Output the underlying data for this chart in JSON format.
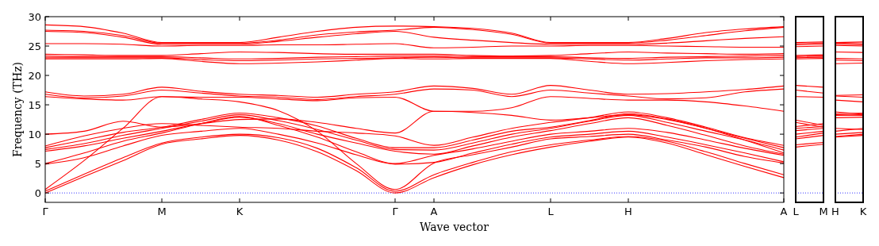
{
  "chart_data": [
    {
      "type": "line",
      "xlabel": "Wave vector",
      "ylabel": "Frequency (THz)",
      "ylim": [
        -1.6,
        30
      ],
      "yticks": [
        0,
        5,
        10,
        15,
        20,
        25,
        30
      ],
      "categories": [
        "Γ",
        null,
        null,
        "M",
        null,
        "K",
        null,
        null,
        null,
        "Γ",
        "A",
        null,
        null,
        "L",
        null,
        "H",
        null,
        null,
        null,
        "A"
      ],
      "grid": false,
      "line_style": "solid",
      "marker": "none",
      "ref_lines": [
        {
          "axis": "y",
          "value": 0,
          "color": "#0000ff",
          "line_style": "dotted"
        }
      ],
      "series": [
        {
          "color": "#ff0000",
          "values": [
            0,
            2.8,
            5.5,
            8.3,
            9.2,
            9.8,
            9,
            7,
            3.8,
            0,
            2.6,
            4.8,
            6.5,
            7.8,
            8.8,
            9.5,
            8.5,
            6.5,
            4.5,
            2.6
          ]
        },
        {
          "color": "#ff0000",
          "values": [
            0.3,
            3.2,
            6,
            8.5,
            9.5,
            10,
            9.4,
            7.6,
            4.3,
            0.3,
            3.1,
            5.2,
            7,
            8.2,
            9,
            9.6,
            8.8,
            7,
            5,
            3.1
          ]
        },
        {
          "color": "#ff0000",
          "values": [
            0.6,
            5.5,
            11,
            16.4,
            16,
            15.5,
            14,
            10.5,
            5,
            0.6,
            5.1,
            6.5,
            7.8,
            9.2,
            9.6,
            10,
            9,
            7.8,
            6.2,
            5.1
          ]
        },
        {
          "color": "#ff0000",
          "values": [
            4.9,
            6,
            8,
            9.8,
            10.5,
            11,
            10,
            8.5,
            6.5,
            4.9,
            5.2,
            6.8,
            8.3,
            9.5,
            10,
            10.5,
            9.5,
            8.2,
            6.8,
            5.3
          ]
        },
        {
          "color": "#ff0000",
          "values": [
            5,
            6.8,
            8.8,
            10.2,
            11.8,
            13,
            11.5,
            9.5,
            7,
            5,
            6.4,
            7.5,
            8.8,
            10,
            10.5,
            11,
            10.3,
            9,
            7.6,
            6.4
          ]
        },
        {
          "color": "#ff0000",
          "values": [
            7.1,
            8,
            9.3,
            10.5,
            11.8,
            12.9,
            11.8,
            10,
            8.5,
            7.1,
            6.6,
            8,
            9.5,
            10.6,
            11.8,
            12.8,
            11.5,
            9.8,
            8,
            6.6
          ]
        },
        {
          "color": "#ff0000",
          "values": [
            7.4,
            8.4,
            9.8,
            11,
            12.2,
            13.3,
            12.3,
            10.8,
            9,
            7.4,
            7.3,
            8.5,
            10,
            11,
            12.2,
            13.2,
            12,
            10.5,
            9,
            7.3
          ]
        },
        {
          "color": "#ff0000",
          "values": [
            7.7,
            9,
            10.3,
            11.2,
            12.5,
            13.6,
            12.8,
            11.4,
            9.3,
            7.7,
            7.7,
            9,
            10.5,
            11.2,
            12.3,
            13.5,
            12.6,
            11,
            9.3,
            7.7
          ]
        },
        {
          "color": "#ff0000",
          "values": [
            8,
            9.7,
            11,
            11.8,
            11.5,
            11.2,
            11,
            10.5,
            10.2,
            9.7,
            8.1,
            9.5,
            11,
            12,
            12.8,
            13.8,
            12.8,
            11.2,
            9.4,
            8.1
          ]
        },
        {
          "color": "#ff0000",
          "values": [
            10,
            10.5,
            12.2,
            11.2,
            11.8,
            12.5,
            12.6,
            12,
            11,
            10.2,
            13.9,
            13.7,
            13.2,
            12.4,
            12.8,
            13.3,
            12.5,
            11,
            9,
            6.8
          ]
        },
        {
          "color": "#ff0000",
          "values": [
            16.4,
            16,
            15.8,
            16.4,
            16.3,
            16.3,
            16,
            15.7,
            16.2,
            16.3,
            13.9,
            13.9,
            14.5,
            16.4,
            16.1,
            15.8,
            15.8,
            15.5,
            14.8,
            13.9
          ]
        },
        {
          "color": "#ff0000",
          "values": [
            16.8,
            16.2,
            16.5,
            17.5,
            17,
            16.5,
            16.3,
            15.9,
            16.4,
            16.8,
            17.7,
            17.5,
            16.4,
            17.5,
            17,
            16.5,
            16,
            16.2,
            17.2,
            17.7
          ]
        },
        {
          "color": "#ff0000",
          "values": [
            17.2,
            16.5,
            16.8,
            18,
            17.3,
            16.8,
            16.6,
            16.3,
            16.8,
            17.2,
            18.2,
            17.8,
            16.8,
            18.3,
            17.5,
            16.8,
            16.9,
            17.2,
            17.6,
            18.2
          ]
        },
        {
          "color": "#ff0000",
          "values": [
            22.8,
            22.8,
            22.8,
            22.9,
            22.4,
            22,
            22.1,
            22.3,
            22.6,
            22.9,
            22.8,
            22.9,
            22.9,
            22.9,
            22.4,
            22,
            22.2,
            22.5,
            22.7,
            22.8
          ]
        },
        {
          "color": "#ff0000",
          "values": [
            23,
            23,
            23,
            23,
            22.7,
            22.5,
            22.6,
            22.8,
            22.9,
            23,
            23.1,
            23,
            23,
            23,
            22.8,
            22.6,
            22.8,
            23,
            23,
            23.1
          ]
        },
        {
          "color": "#ff0000",
          "values": [
            23.3,
            23.2,
            23.2,
            23.2,
            23,
            22.8,
            22.9,
            23.1,
            23.2,
            23.3,
            23.3,
            23.2,
            23.2,
            23.2,
            23,
            22.9,
            23.1,
            23.2,
            23.3,
            23.4
          ]
        },
        {
          "color": "#ff0000",
          "values": [
            23.6,
            23.5,
            23.4,
            23.4,
            23.7,
            24,
            23.9,
            23.7,
            23.6,
            23.6,
            23.6,
            23.4,
            23.3,
            23.4,
            23.7,
            24,
            23.8,
            23.7,
            23.6,
            23.7
          ]
        },
        {
          "color": "#ff0000",
          "values": [
            25.4,
            25.4,
            25.3,
            25,
            25.1,
            25.1,
            25.2,
            25.2,
            25.3,
            25.4,
            24.7,
            24.8,
            25,
            25,
            25.1,
            25.1,
            25,
            24.9,
            24.8,
            24.8
          ]
        },
        {
          "color": "#ff0000",
          "values": [
            27.5,
            27.3,
            26.5,
            25.3,
            25.3,
            25.3,
            25.8,
            26.5,
            27.1,
            27.5,
            26.5,
            26,
            25.6,
            25.3,
            25.3,
            25.3,
            25.5,
            25.9,
            26.3,
            26.6
          ]
        },
        {
          "color": "#ff0000",
          "values": [
            27.7,
            27.5,
            26.8,
            25.5,
            25.5,
            25.5,
            26,
            26.9,
            27.4,
            27.7,
            28.2,
            27.8,
            27,
            25.5,
            25.5,
            25.5,
            26,
            26.8,
            27.6,
            28.2
          ]
        },
        {
          "color": "#ff0000",
          "values": [
            28.6,
            28.3,
            27.2,
            25.6,
            25.6,
            25.6,
            26.5,
            27.5,
            28.2,
            28.4,
            28.3,
            28,
            27.2,
            25.6,
            25.6,
            25.6,
            26.3,
            27.3,
            27.9,
            28.3
          ]
        }
      ]
    },
    {
      "type": "line",
      "ylim": [
        -1.6,
        30
      ],
      "yticks": [
        0,
        5,
        10,
        15,
        20,
        25,
        30
      ],
      "tick_labels": "x",
      "categories": [
        "L",
        "M"
      ],
      "grid": false,
      "line_style": "solid",
      "marker": "none",
      "ref_lines": [
        {
          "axis": "y",
          "value": 0,
          "color": "#0000ff",
          "line_style": "dotted"
        }
      ],
      "series": [
        {
          "color": "#ff0000",
          "values": [
            7.8,
            8.3
          ]
        },
        {
          "color": "#ff0000",
          "values": [
            8.2,
            8.6
          ]
        },
        {
          "color": "#ff0000",
          "values": [
            9.2,
            9.8
          ]
        },
        {
          "color": "#ff0000",
          "values": [
            9.5,
            10.2
          ]
        },
        {
          "color": "#ff0000",
          "values": [
            10,
            10.5
          ]
        },
        {
          "color": "#ff0000",
          "values": [
            10.6,
            11
          ]
        },
        {
          "color": "#ff0000",
          "values": [
            11,
            11.3
          ]
        },
        {
          "color": "#ff0000",
          "values": [
            11.3,
            11.8
          ]
        },
        {
          "color": "#ff0000",
          "values": [
            12,
            11.2
          ]
        },
        {
          "color": "#ff0000",
          "values": [
            12.4,
            11.5
          ]
        },
        {
          "color": "#ff0000",
          "values": [
            16.4,
            16.3
          ]
        },
        {
          "color": "#ff0000",
          "values": [
            17.5,
            17
          ]
        },
        {
          "color": "#ff0000",
          "values": [
            18.3,
            18
          ]
        },
        {
          "color": "#ff0000",
          "values": [
            22.8,
            22.9
          ]
        },
        {
          "color": "#ff0000",
          "values": [
            23,
            23.1
          ]
        },
        {
          "color": "#ff0000",
          "values": [
            23.2,
            23.3
          ]
        },
        {
          "color": "#ff0000",
          "values": [
            23.4,
            23.5
          ]
        },
        {
          "color": "#ff0000",
          "values": [
            24.9,
            25
          ]
        },
        {
          "color": "#ff0000",
          "values": [
            25.2,
            25.3
          ]
        },
        {
          "color": "#ff0000",
          "values": [
            25.4,
            25.5
          ]
        },
        {
          "color": "#ff0000",
          "values": [
            25.6,
            25.7
          ]
        }
      ]
    },
    {
      "type": "line",
      "ylim": [
        -1.6,
        30
      ],
      "yticks": [
        0,
        5,
        10,
        15,
        20,
        25,
        30
      ],
      "tick_labels": "x",
      "categories": [
        "H",
        "K"
      ],
      "grid": false,
      "line_style": "solid",
      "marker": "none",
      "ref_lines": [
        {
          "axis": "y",
          "value": 0,
          "color": "#0000ff",
          "line_style": "dotted"
        }
      ],
      "series": [
        {
          "color": "#ff0000",
          "values": [
            9.5,
            9.8
          ]
        },
        {
          "color": "#ff0000",
          "values": [
            9.6,
            10
          ]
        },
        {
          "color": "#ff0000",
          "values": [
            10,
            10.3
          ]
        },
        {
          "color": "#ff0000",
          "values": [
            10.5,
            11
          ]
        },
        {
          "color": "#ff0000",
          "values": [
            11,
            10.8
          ]
        },
        {
          "color": "#ff0000",
          "values": [
            12.8,
            12.9
          ]
        },
        {
          "color": "#ff0000",
          "values": [
            13.2,
            13.3
          ]
        },
        {
          "color": "#ff0000",
          "values": [
            13.5,
            13.6
          ]
        },
        {
          "color": "#ff0000",
          "values": [
            13.8,
            13.4
          ]
        },
        {
          "color": "#ff0000",
          "values": [
            13.3,
            13.2
          ]
        },
        {
          "color": "#ff0000",
          "values": [
            15.8,
            15.5
          ]
        },
        {
          "color": "#ff0000",
          "values": [
            16.5,
            16.3
          ]
        },
        {
          "color": "#ff0000",
          "values": [
            16.6,
            16.7
          ]
        },
        {
          "color": "#ff0000",
          "values": [
            22,
            22.1
          ]
        },
        {
          "color": "#ff0000",
          "values": [
            22.6,
            22.5
          ]
        },
        {
          "color": "#ff0000",
          "values": [
            22.9,
            22.8
          ]
        },
        {
          "color": "#ff0000",
          "values": [
            24,
            23.9
          ]
        },
        {
          "color": "#ff0000",
          "values": [
            25.1,
            25
          ]
        },
        {
          "color": "#ff0000",
          "values": [
            25.3,
            25.2
          ]
        },
        {
          "color": "#ff0000",
          "values": [
            25.5,
            25.4
          ]
        },
        {
          "color": "#ff0000",
          "values": [
            25.6,
            25.7
          ]
        }
      ]
    }
  ]
}
